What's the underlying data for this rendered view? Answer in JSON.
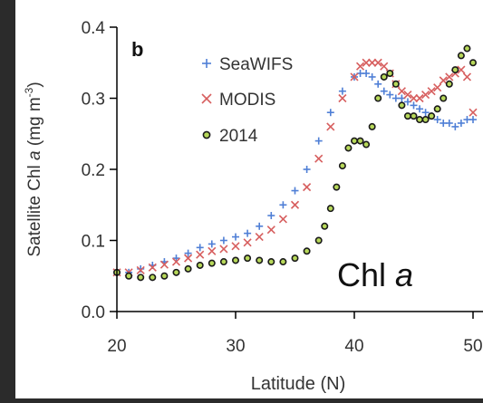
{
  "panel_letter": "b",
  "annotation": {
    "prefix": "Chl ",
    "italic": "a"
  },
  "colors": {
    "outer_background": "#2b2b2b",
    "figure_background": "#ffffff",
    "seawifs": "#4f7fd6",
    "modis": "#d75f5f",
    "y2014_fill": "#b7d85a",
    "y2014_edge": "#1a1a1a",
    "axis": "#000000",
    "text": "#333333"
  },
  "chart_data": {
    "type": "scatter",
    "xlabel": "Latitude (N)",
    "ylabel_parts": {
      "prefix": "Satellite Chl ",
      "italic": "a",
      "unit_open": " (mg m",
      "superscript": "-3",
      "unit_close": ")"
    },
    "xlim": [
      20,
      50
    ],
    "ylim": [
      0,
      0.4
    ],
    "xticks": [
      "20",
      "30",
      "40",
      "50"
    ],
    "xtick_values": [
      20,
      30,
      40,
      50
    ],
    "yticks": [
      "0.0",
      "0.1",
      "0.2",
      "0.3",
      "0.4"
    ],
    "ytick_values": [
      0.0,
      0.1,
      0.2,
      0.3,
      0.4
    ],
    "grid": false,
    "legend_position": "top-left",
    "series": [
      {
        "name": "SeaWIFS",
        "marker": "plus",
        "x": [
          20,
          21,
          22,
          23,
          24,
          25,
          26,
          27,
          28,
          29,
          30,
          31,
          32,
          33,
          34,
          35,
          36,
          37,
          38,
          39,
          40,
          40.5,
          41,
          41.5,
          42,
          42.5,
          43,
          43.5,
          44,
          44.5,
          45,
          45.5,
          46,
          46.5,
          47,
          47.5,
          48,
          48.5,
          49,
          49.5,
          50
        ],
        "y": [
          0.055,
          0.055,
          0.06,
          0.065,
          0.07,
          0.075,
          0.082,
          0.09,
          0.095,
          0.1,
          0.105,
          0.11,
          0.12,
          0.135,
          0.15,
          0.17,
          0.2,
          0.24,
          0.28,
          0.31,
          0.33,
          0.335,
          0.335,
          0.33,
          0.32,
          0.31,
          0.305,
          0.3,
          0.3,
          0.295,
          0.29,
          0.285,
          0.28,
          0.275,
          0.27,
          0.265,
          0.265,
          0.26,
          0.265,
          0.27,
          0.27
        ]
      },
      {
        "name": "MODIS",
        "marker": "cross",
        "x": [
          20,
          21,
          22,
          23,
          24,
          25,
          26,
          27,
          28,
          29,
          30,
          31,
          32,
          33,
          34,
          35,
          36,
          37,
          38,
          39,
          40,
          40.5,
          41,
          41.5,
          42,
          42.5,
          43,
          43.5,
          44,
          44.5,
          45,
          45.5,
          46,
          46.5,
          47,
          47.5,
          48,
          48.5,
          49,
          49.5,
          50
        ],
        "y": [
          0.055,
          0.055,
          0.058,
          0.062,
          0.066,
          0.07,
          0.075,
          0.08,
          0.085,
          0.088,
          0.092,
          0.097,
          0.105,
          0.115,
          0.13,
          0.15,
          0.175,
          0.215,
          0.26,
          0.3,
          0.33,
          0.345,
          0.35,
          0.35,
          0.35,
          0.345,
          0.335,
          0.32,
          0.31,
          0.305,
          0.3,
          0.3,
          0.305,
          0.31,
          0.315,
          0.325,
          0.33,
          0.335,
          0.34,
          0.33,
          0.28
        ]
      },
      {
        "name": "2014",
        "marker": "circle",
        "x": [
          20,
          21,
          22,
          23,
          24,
          25,
          26,
          27,
          28,
          29,
          30,
          31,
          32,
          33,
          34,
          35,
          36,
          37,
          37.5,
          38,
          38.5,
          39,
          39.5,
          40,
          40.5,
          41,
          41.5,
          42,
          42.5,
          43,
          43.5,
          44,
          44.5,
          45,
          45.5,
          46,
          46.5,
          47,
          47.5,
          48,
          48.5,
          49,
          49.5,
          50
        ],
        "y": [
          0.055,
          0.05,
          0.048,
          0.048,
          0.05,
          0.055,
          0.06,
          0.065,
          0.068,
          0.07,
          0.072,
          0.075,
          0.072,
          0.07,
          0.07,
          0.075,
          0.085,
          0.1,
          0.12,
          0.145,
          0.175,
          0.205,
          0.23,
          0.24,
          0.24,
          0.235,
          0.26,
          0.3,
          0.33,
          0.335,
          0.32,
          0.29,
          0.275,
          0.275,
          0.27,
          0.27,
          0.275,
          0.285,
          0.3,
          0.32,
          0.34,
          0.36,
          0.37,
          0.35
        ]
      }
    ]
  }
}
